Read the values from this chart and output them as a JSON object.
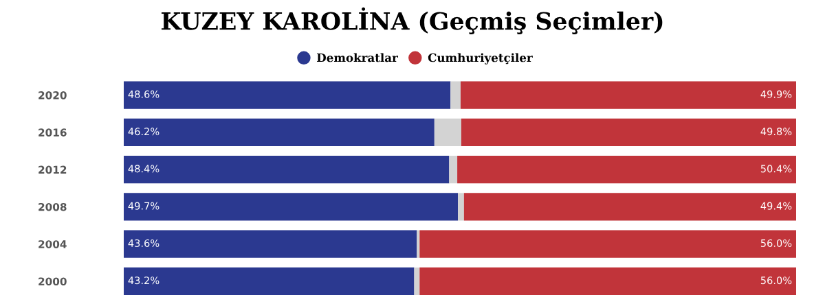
{
  "chart_data": {
    "type": "bar",
    "orientation": "horizontal",
    "stacked": true,
    "title": "KUZEY KAROLİNA (Geçmiş Seçimler)",
    "categories": [
      "2020",
      "2016",
      "2012",
      "2008",
      "2004",
      "2000"
    ],
    "series": [
      {
        "name": "Demokratlar",
        "color": "#2b3990",
        "values": [
          48.6,
          46.2,
          48.4,
          49.7,
          43.6,
          43.2
        ],
        "value_labels": [
          "48.6%",
          "46.2%",
          "48.4%",
          "49.7%",
          "43.6%",
          "43.2%"
        ]
      },
      {
        "color": "#d3d3d3",
        "values": [
          1.5,
          4.0,
          1.2,
          0.9,
          0.4,
          0.8
        ]
      },
      {
        "name": "Cumhuriyetçiler",
        "color": "#c1343a",
        "values": [
          49.9,
          49.8,
          50.4,
          49.4,
          56.0,
          56.0
        ],
        "value_labels": [
          "49.9%",
          "49.8%",
          "50.4%",
          "49.4%",
          "56.0%",
          "56.0%"
        ]
      }
    ],
    "xlim": [
      0,
      100
    ],
    "tick_labels": "y",
    "legend": "top",
    "marker": "circle",
    "grid": false
  }
}
